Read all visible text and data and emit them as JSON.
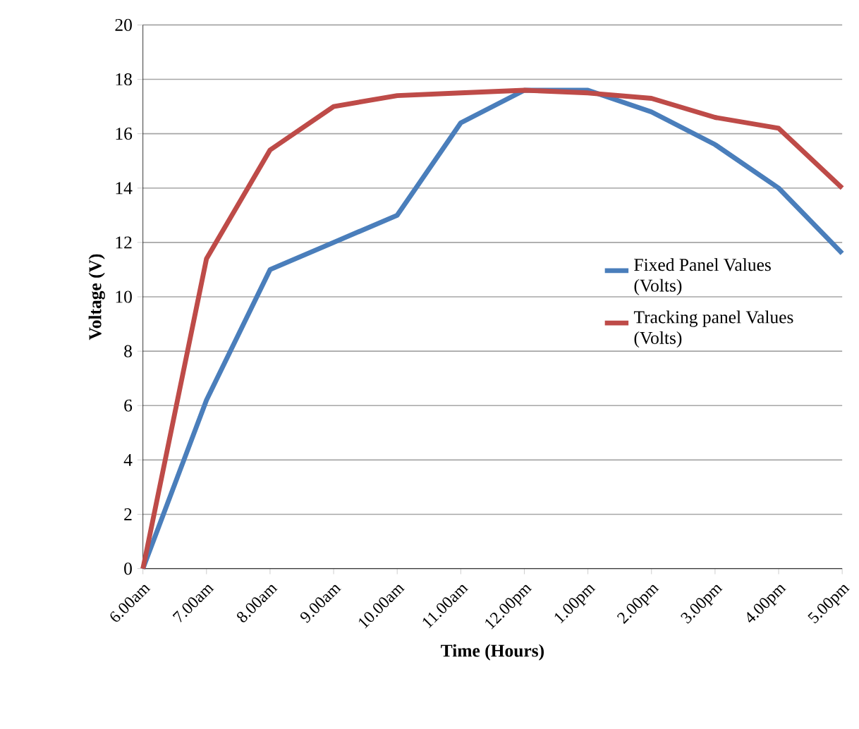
{
  "chart_data": {
    "type": "line",
    "xlabel": "Time (Hours)",
    "ylabel": "Voltage (V)",
    "categories": [
      "6.00am",
      "7.00am",
      "8.00am",
      "9.00am",
      "10.00am",
      "11.00am",
      "12.00pm",
      "1.00pm",
      "2.00pm",
      "3.00pm",
      "4.00pm",
      "5.00pm"
    ],
    "series": [
      {
        "name": "Fixed Panel Values (Volts)",
        "color": "#4a7ebb",
        "values": [
          0,
          6.2,
          11,
          12,
          13,
          16.4,
          17.6,
          17.6,
          16.8,
          15.6,
          14,
          11.6
        ]
      },
      {
        "name": "Tracking panel Values (Volts)",
        "color": "#be4b48",
        "values": [
          0,
          11.4,
          15.4,
          17,
          17.4,
          17.5,
          17.6,
          17.5,
          17.3,
          16.6,
          16.2,
          14
        ]
      }
    ],
    "ylim": [
      0,
      20
    ],
    "yticks": [
      0,
      2,
      4,
      6,
      8,
      10,
      12,
      14,
      16,
      18,
      20
    ],
    "grid": "y",
    "legend": "right",
    "marker": "none",
    "line_style": "solid"
  }
}
